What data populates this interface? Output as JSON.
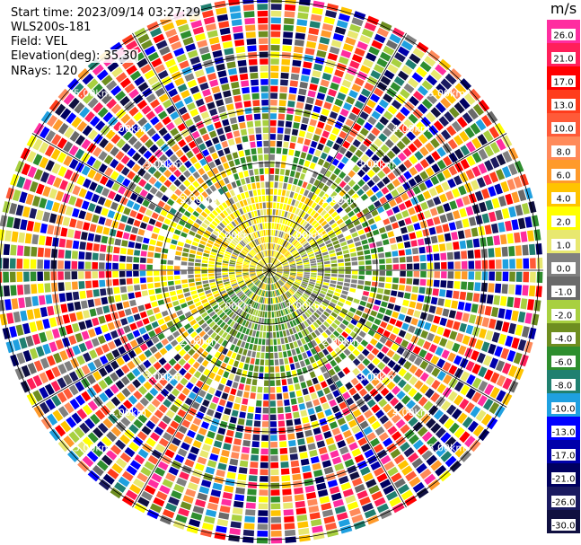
{
  "info": {
    "start_time": "Start time: 2023/09/14 03:27:29",
    "instrument": "WLS200s-181",
    "field": "Field: VEL",
    "elevation": "Elevation(deg): 35.30",
    "nrays": "NRays: 120"
  },
  "colorbar": {
    "title": "m/s",
    "entries": [
      {
        "label": "26.0",
        "color": "#ff2da0"
      },
      {
        "label": "21.0",
        "color": "#ff1f5a"
      },
      {
        "label": "17.0",
        "color": "#ff0000"
      },
      {
        "label": "13.0",
        "color": "#ff3c1c"
      },
      {
        "label": "10.0",
        "color": "#ff5a38"
      },
      {
        "label": "8.0",
        "color": "#ff8a5a"
      },
      {
        "label": "6.0",
        "color": "#ff9a2a"
      },
      {
        "label": "4.0",
        "color": "#ffc400"
      },
      {
        "label": "2.0",
        "color": "#ffff00"
      },
      {
        "label": "1.0",
        "color": "#e8e870"
      },
      {
        "label": "0.0",
        "color": "#808080"
      },
      {
        "label": "-1.0",
        "color": "#6a6a6a"
      },
      {
        "label": "-2.0",
        "color": "#a8d040"
      },
      {
        "label": "-4.0",
        "color": "#6e8e20"
      },
      {
        "label": "-6.0",
        "color": "#2e8e2e"
      },
      {
        "label": "-8.0",
        "color": "#208070"
      },
      {
        "label": "-10.0",
        "color": "#1fa0e0"
      },
      {
        "label": "-13.0",
        "color": "#0000ff"
      },
      {
        "label": "-17.0",
        "color": "#0000aa"
      },
      {
        "label": "-21.0",
        "color": "#000060"
      },
      {
        "label": "-26.0",
        "color": "#1a1a60"
      },
      {
        "label": "-30.0",
        "color": "#101040"
      }
    ]
  },
  "ring_labels": [
    {
      "label": "1.00km"
    },
    {
      "label": "2.00km"
    },
    {
      "label": "3.00km"
    },
    {
      "label": "4.00km"
    },
    {
      "label": "5.00km"
    }
  ],
  "ring_label_color": "#ffffff"
}
